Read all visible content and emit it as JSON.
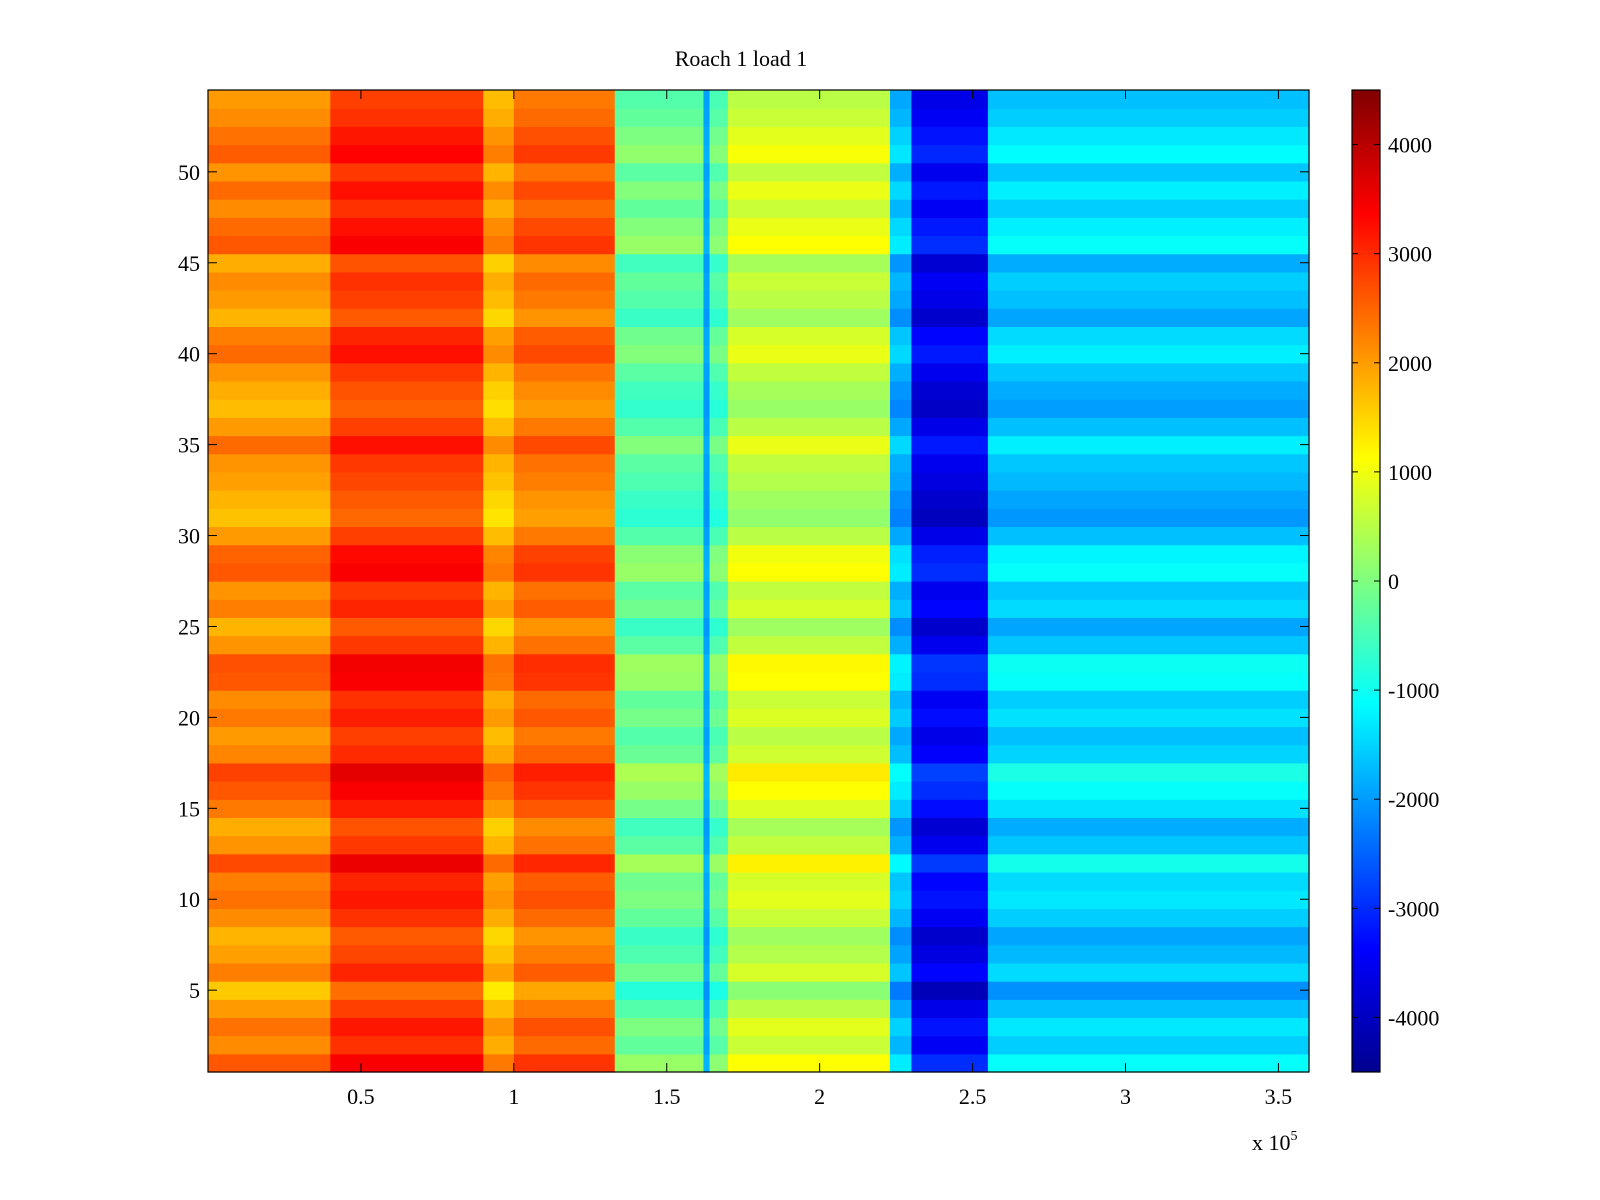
{
  "chart_data": {
    "type": "heatmap",
    "title": "Roach 1 load 1",
    "xlabel": "",
    "ylabel": "",
    "x_multiplier_label": "x 10",
    "x_multiplier_exponent": "5",
    "xlim": [
      0,
      3.6
    ],
    "ylim": [
      0.5,
      54.5
    ],
    "xticks": [
      0.5,
      1,
      1.5,
      2,
      2.5,
      3,
      3.5
    ],
    "xtick_labels": [
      "0.5",
      "1",
      "1.5",
      "2",
      "2.5",
      "3",
      "3.5"
    ],
    "yticks": [
      5,
      10,
      15,
      20,
      25,
      30,
      35,
      40,
      45,
      50
    ],
    "ytick_labels": [
      "5",
      "10",
      "15",
      "20",
      "25",
      "30",
      "35",
      "40",
      "45",
      "50"
    ],
    "colormap": "jet",
    "clim": [
      -4500,
      4500
    ],
    "colorbar_ticks": [
      4000,
      3000,
      2000,
      1000,
      0,
      -1000,
      -2000,
      -3000,
      -4000
    ],
    "colorbar_tick_labels": [
      "4000",
      "3000",
      "2000",
      "1000",
      "0",
      "-1000",
      "-2000",
      "-3000",
      "-4000"
    ],
    "rows": 54,
    "column_bands": [
      {
        "x_start": 0.0,
        "x_end": 0.4,
        "mean": 1900
      },
      {
        "x_start": 0.4,
        "x_end": 0.9,
        "mean": 2700
      },
      {
        "x_start": 0.9,
        "x_end": 1.0,
        "mean": 1600
      },
      {
        "x_start": 1.0,
        "x_end": 1.33,
        "mean": 2200
      },
      {
        "x_start": 1.33,
        "x_end": 1.62,
        "mean": -500
      },
      {
        "x_start": 1.62,
        "x_end": 1.64,
        "mean": -2000
      },
      {
        "x_start": 1.64,
        "x_end": 1.7,
        "mean": -600
      },
      {
        "x_start": 1.7,
        "x_end": 2.23,
        "mean": 400
      },
      {
        "x_start": 2.23,
        "x_end": 2.3,
        "mean": -2000
      },
      {
        "x_start": 2.3,
        "x_end": 2.55,
        "mean": -3700
      },
      {
        "x_start": 2.55,
        "x_end": 3.6,
        "mean": -1800
      }
    ],
    "row_offsets": [
      1200,
      400,
      800,
      200,
      -500,
      600,
      100,
      -200,
      400,
      800,
      600,
      1400,
      300,
      -100,
      700,
      1200,
      1500,
      500,
      200,
      700,
      400,
      1200,
      1300,
      300,
      -200,
      600,
      300,
      1200,
      1000,
      200,
      -400,
      -200,
      100,
      300,
      900,
      200,
      -300,
      -100,
      300,
      900,
      600,
      -200,
      200,
      400,
      -100,
      1200,
      900,
      400,
      900,
      300,
      1100,
      800,
      400,
      200
    ]
  }
}
